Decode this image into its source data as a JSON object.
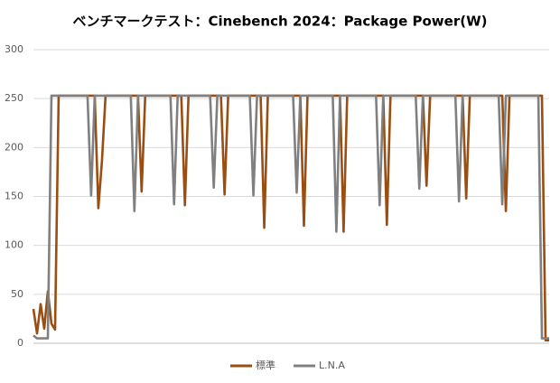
{
  "chart_data": {
    "type": "line",
    "title": "ベンチマークテスト：Cinebench 2024：Package Power(W)",
    "categories": [
      null,
      null,
      null,
      null,
      null,
      null,
      null,
      null,
      null,
      null,
      null,
      null,
      null,
      null,
      null,
      null,
      null,
      null,
      null,
      null,
      null,
      null,
      null,
      null,
      null,
      null,
      null,
      null,
      null,
      null,
      null,
      null,
      null,
      null,
      null,
      null,
      null,
      null,
      null,
      null,
      null,
      null,
      null,
      null,
      null,
      null,
      null,
      null,
      null,
      null,
      null,
      null,
      null,
      null,
      null,
      null,
      null,
      null,
      null,
      null,
      null,
      null,
      null,
      null,
      null,
      null,
      null,
      null,
      null,
      null,
      null,
      null,
      null,
      null,
      null,
      null,
      null,
      null,
      null,
      null,
      null,
      null,
      null,
      null,
      null,
      null,
      null,
      null,
      null,
      null,
      null,
      null,
      null,
      null,
      null,
      null,
      null,
      null,
      null,
      null,
      null,
      null,
      null,
      null,
      null,
      null,
      null,
      null,
      null,
      null,
      null,
      null,
      null,
      null,
      null,
      null,
      null,
      null,
      null,
      null,
      null,
      null,
      null,
      null,
      null,
      null,
      null,
      null,
      null,
      null,
      null,
      null,
      null,
      null,
      null,
      null,
      null,
      null,
      null,
      null,
      null,
      null,
      null,
      null
    ],
    "series": [
      {
        "name": "標準",
        "color": "#9a4e12",
        "values": [
          35,
          10,
          40,
          15,
          53,
          20,
          14,
          253,
          253,
          253,
          253,
          253,
          253,
          253,
          253,
          253,
          253,
          253,
          138,
          186,
          253,
          253,
          253,
          253,
          253,
          253,
          253,
          253,
          253,
          253,
          155,
          253,
          253,
          253,
          253,
          253,
          253,
          253,
          253,
          253,
          253,
          253,
          141,
          253,
          253,
          253,
          253,
          253,
          253,
          253,
          253,
          253,
          253,
          152,
          253,
          253,
          253,
          253,
          253,
          253,
          253,
          253,
          253,
          253,
          118,
          253,
          253,
          253,
          253,
          253,
          253,
          253,
          253,
          253,
          253,
          120,
          253,
          253,
          253,
          253,
          253,
          253,
          253,
          253,
          253,
          253,
          114,
          253,
          253,
          253,
          253,
          253,
          253,
          253,
          253,
          253,
          253,
          253,
          121,
          253,
          253,
          253,
          253,
          253,
          253,
          253,
          253,
          253,
          253,
          161,
          253,
          253,
          253,
          253,
          253,
          253,
          253,
          253,
          253,
          253,
          148,
          253,
          253,
          253,
          253,
          253,
          253,
          253,
          253,
          253,
          253,
          135,
          253,
          253,
          253,
          253,
          253,
          253,
          253,
          253,
          253,
          253,
          3,
          3
        ]
      },
      {
        "name": "L.N.A",
        "color": "#808080",
        "values": [
          8,
          5,
          5,
          5,
          5,
          253,
          253,
          253,
          253,
          253,
          253,
          253,
          253,
          253,
          253,
          253,
          151,
          253,
          253,
          253,
          253,
          253,
          253,
          253,
          253,
          253,
          253,
          253,
          135,
          253,
          253,
          253,
          253,
          253,
          253,
          253,
          253,
          253,
          253,
          142,
          253,
          253,
          253,
          253,
          253,
          253,
          253,
          253,
          253,
          253,
          159,
          253,
          253,
          253,
          253,
          253,
          253,
          253,
          253,
          253,
          253,
          151,
          253,
          253,
          253,
          253,
          253,
          253,
          253,
          253,
          253,
          253,
          253,
          154,
          253,
          253,
          253,
          253,
          253,
          253,
          253,
          253,
          253,
          253,
          114,
          253,
          253,
          253,
          253,
          253,
          253,
          253,
          253,
          253,
          253,
          253,
          141,
          253,
          253,
          253,
          253,
          253,
          253,
          253,
          253,
          253,
          253,
          158,
          253,
          253,
          253,
          253,
          253,
          253,
          253,
          253,
          253,
          253,
          145,
          253,
          253,
          253,
          253,
          253,
          253,
          253,
          253,
          253,
          253,
          253,
          142,
          253,
          253,
          253,
          253,
          253,
          253,
          253,
          253,
          253,
          253,
          5,
          5,
          5
        ]
      }
    ],
    "ylim": [
      0,
      300
    ],
    "yticks": [
      0,
      50,
      100,
      150,
      200,
      250,
      300
    ],
    "grid": true,
    "legend": "bottom"
  }
}
